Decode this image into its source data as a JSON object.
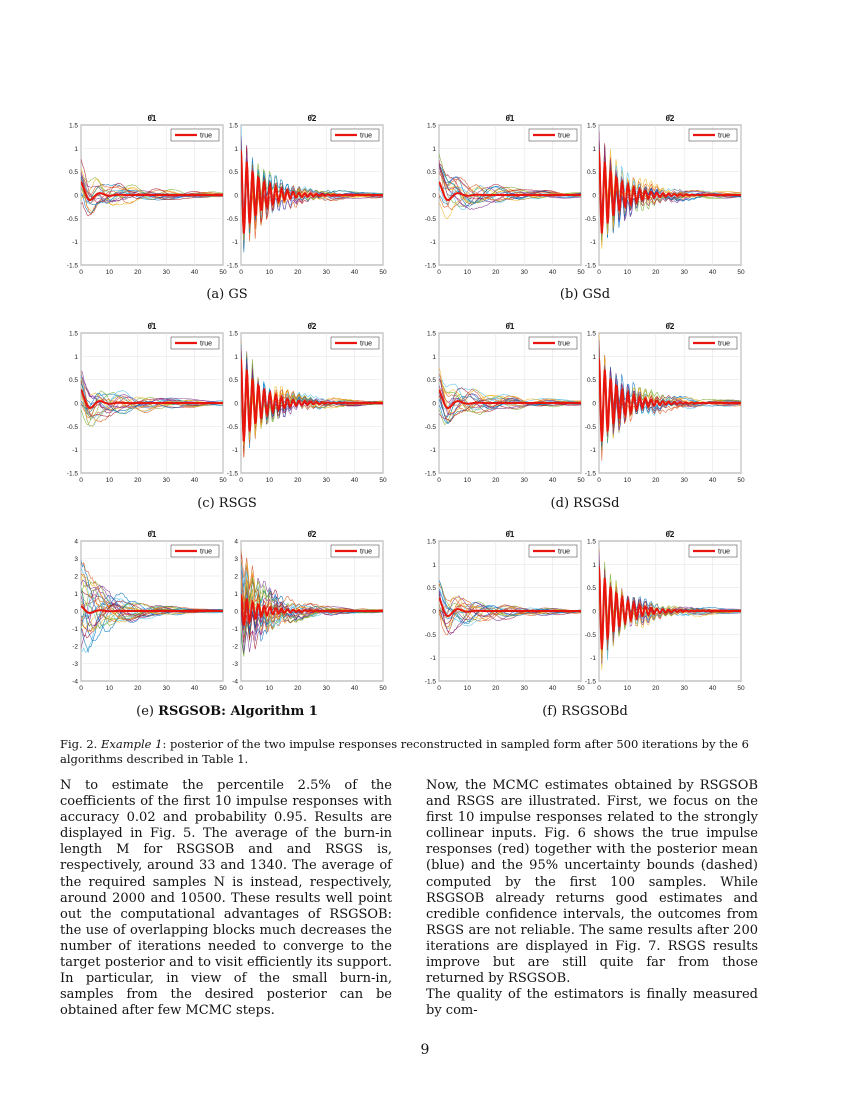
{
  "legend_label": "true",
  "theta1_title": "θ̂1",
  "theta2_title": "θ̂2",
  "panels": [
    {
      "id": "a",
      "label": "(a) GS",
      "bold": "",
      "ylim": [
        -1.5,
        1.5
      ],
      "yticks": [
        "1.5",
        "1",
        "0.5",
        "0",
        "-0.5",
        "-1",
        "-1.5"
      ],
      "xticks": [
        "0",
        "10",
        "20",
        "30",
        "40",
        "50"
      ]
    },
    {
      "id": "b",
      "label": "(b) GSd",
      "bold": "",
      "ylim": [
        -1.5,
        1.5
      ],
      "yticks": [
        "1.5",
        "1",
        "0.5",
        "0",
        "-0.5",
        "-1",
        "-1.5"
      ],
      "xticks": [
        "0",
        "10",
        "20",
        "30",
        "40",
        "50"
      ]
    },
    {
      "id": "c",
      "label": "(c) RSGS",
      "bold": "",
      "ylim": [
        -1.5,
        1.5
      ],
      "yticks": [
        "1.5",
        "1",
        "0.5",
        "0",
        "-0.5",
        "-1",
        "-1.5"
      ],
      "xticks": [
        "0",
        "10",
        "20",
        "30",
        "40",
        "50"
      ]
    },
    {
      "id": "d",
      "label": "(d) RSGSd",
      "bold": "",
      "ylim": [
        -1.5,
        1.5
      ],
      "yticks": [
        "1.5",
        "1",
        "0.5",
        "0",
        "-0.5",
        "-1",
        "-1.5"
      ],
      "xticks": [
        "0",
        "10",
        "20",
        "30",
        "40",
        "50"
      ]
    },
    {
      "id": "e",
      "label": "(e) ",
      "bold": "RSGSOB: Algorithm 1",
      "ylim": [
        -4,
        4
      ],
      "yticks": [
        "4",
        "3",
        "2",
        "1",
        "0",
        "-1",
        "-2",
        "-3",
        "-4"
      ],
      "xticks": [
        "0",
        "10",
        "20",
        "30",
        "40",
        "50"
      ]
    },
    {
      "id": "f",
      "label": "(f) RSGSOBd",
      "bold": "",
      "ylim": [
        -1.5,
        1.5
      ],
      "yticks": [
        "1.5",
        "1",
        "0.5",
        "0",
        "-0.5",
        "-1",
        "-1.5"
      ],
      "xticks": [
        "0",
        "10",
        "20",
        "30",
        "40",
        "50"
      ]
    }
  ],
  "caption": {
    "prefix": "Fig. 2. ",
    "example": "Example 1",
    "text": ": posterior of the two impulse responses reconstructed in sampled form after 500 iterations by the 6 algorithms described in Table 1."
  },
  "left_paragraph": "N to estimate the percentile 2.5% of the coefficients of the first 10 impulse responses with accuracy 0.02 and probability 0.95. Results are displayed in Fig. 5. The average of the burn-in length M for RSGSOB and and RSGS is, respectively, around 33 and 1340. The average of the required samples N is instead, respectively, around 2000 and 10500. These results well point out the computational advantages of RSGSOB: the use of overlapping blocks much decreases the number of iterations needed to converge to the target posterior and to visit efficiently its support. In particular, in view of the small burn-in, samples from the desired posterior can be obtained after few MCMC steps.",
  "right_paragraph_1": "Now, the MCMC estimates obtained by RSGSOB and RSGS are illustrated. First, we focus on the first 10 impulse responses related to the strongly collinear inputs. Fig. 6 shows the true impulse responses (red) together with the posterior mean (blue) and the 95% uncertainty bounds (dashed) computed by the first 100 samples. While RSGSOB already returns good estimates and credible confidence intervals, the outcomes from RSGS are not reliable. The same results after 200 iterations are displayed in Fig. 7. RSGS results improve but are still quite far from those returned by RSGSOB.",
  "right_paragraph_2": "The quality of the estimators is finally measured by com-",
  "page_number": "9",
  "colors": {
    "true_line": "#e8150c",
    "grid": "#e6e6e6",
    "axis": "#262626"
  }
}
